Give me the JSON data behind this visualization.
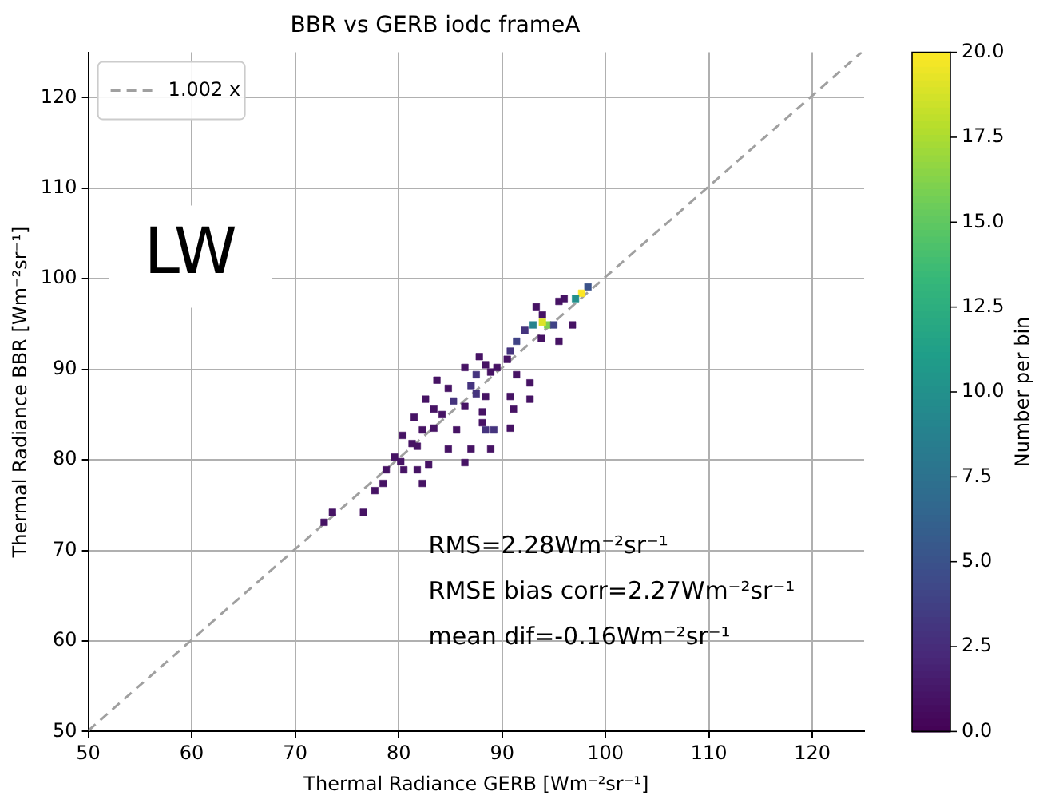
{
  "chart_data": {
    "type": "scatter",
    "title": "BBR vs GERB iodc frameA",
    "xlabel": "Thermal Radiance GERB [Wm⁻²sr⁻¹]",
    "ylabel": "Thermal Radiance BBR [Wm⁻²sr⁻¹]",
    "clabel": "Number per bin",
    "xlim": [
      50,
      125
    ],
    "ylim": [
      50,
      125
    ],
    "xticks": [
      50,
      60,
      70,
      80,
      90,
      100,
      110,
      120
    ],
    "yticks": [
      50,
      60,
      70,
      80,
      90,
      100,
      110,
      120
    ],
    "clim": [
      0,
      20
    ],
    "cticks": [
      {
        "value": 0,
        "label": "0.0"
      },
      {
        "value": 2.5,
        "label": "2.5"
      },
      {
        "value": 5,
        "label": "5.0"
      },
      {
        "value": 7.5,
        "label": "7.5"
      },
      {
        "value": 10,
        "label": "10.0"
      },
      {
        "value": 12.5,
        "label": "12.5"
      },
      {
        "value": 15,
        "label": "15.0"
      },
      {
        "value": 17.5,
        "label": "17.5"
      },
      {
        "value": 20,
        "label": "20.0"
      }
    ],
    "grid": true,
    "legend": "top left",
    "marker": "square",
    "annotations": [
      "LW",
      "RMS=2.28Wm⁻²sr⁻¹",
      "RMSE bias corr=2.27Wm⁻²sr⁻¹",
      "mean dif=-0.16Wm⁻²sr⁻¹"
    ],
    "series": [
      {
        "type": "scatter",
        "x": [
          98.3,
          97.7,
          97.1,
          96,
          95.5,
          93.3,
          93.9,
          94.4,
          93.9,
          93,
          95,
          92.2,
          91.4,
          90.8,
          93.8,
          95.5,
          96.8,
          90.5,
          87.8,
          88.4,
          86.4,
          87.5,
          88.9,
          89.5,
          91.4,
          92.7,
          83.7,
          84.8,
          87,
          87.5,
          88.4,
          90.8,
          92.7,
          82.6,
          85.3,
          86.4,
          83.4,
          84.2,
          91.1,
          81.5,
          88.1,
          88.1,
          82.3,
          83.4,
          88.4,
          89.2,
          90.8,
          85.6,
          80.4,
          81.3,
          81.8,
          84.8,
          87,
          88.9,
          79.6,
          80.2,
          82.9,
          80.5,
          78.8,
          86.4,
          81.8,
          78.5,
          82.3,
          77.7,
          76.6,
          73.6,
          72.8
        ],
        "values": [
          99.1,
          98.4,
          97.8,
          97.8,
          97.5,
          96.9,
          96,
          94.9,
          95.2,
          94.9,
          94.9,
          94.3,
          93.1,
          92,
          93.4,
          93.1,
          94.9,
          91.1,
          91.4,
          90.5,
          90.2,
          89.4,
          89.7,
          90.2,
          89.4,
          88.5,
          88.8,
          87.9,
          88.2,
          87.3,
          87,
          87,
          86.7,
          86.7,
          86.5,
          85.9,
          85.6,
          85,
          85.6,
          84.7,
          85.3,
          84.1,
          83.3,
          83.5,
          83.3,
          83.3,
          83.5,
          83.3,
          82.7,
          81.8,
          81.5,
          81.2,
          81.2,
          81.2,
          80.3,
          79.8,
          79.5,
          78.9,
          78.9,
          79.7,
          78.9,
          77.4,
          77.4,
          76.6,
          74.2,
          74.2,
          73.1
        ],
        "cvalues": [
          5,
          20,
          10,
          1,
          1,
          1,
          1,
          16,
          19,
          9,
          4,
          3,
          4,
          3,
          1,
          1,
          1,
          1,
          1,
          1,
          1,
          3,
          1,
          1,
          1,
          1,
          1,
          1,
          3,
          3,
          1,
          1,
          1,
          1,
          3,
          1,
          1,
          1,
          1,
          1,
          1,
          1,
          1,
          1,
          3,
          3,
          1,
          1,
          1,
          1,
          1,
          1,
          1,
          1,
          1,
          1,
          1,
          1,
          1,
          1,
          1,
          1,
          1,
          1,
          1,
          1,
          1
        ],
        "colors": [
          "#3b528a",
          "#fde725",
          "#23908c",
          "#461364",
          "#461364",
          "#461364",
          "#461364",
          "#7bd050",
          "#dce328",
          "#26838e",
          "#404386",
          "#45347e",
          "#404386",
          "#45347e",
          "#461364",
          "#461364",
          "#461364",
          "#461364",
          "#461364",
          "#461364",
          "#461364",
          "#45347e",
          "#461364",
          "#461364",
          "#461364",
          "#461364",
          "#461364",
          "#461364",
          "#45347e",
          "#45347e",
          "#461364",
          "#461364",
          "#461364",
          "#461364",
          "#45347e",
          "#461364",
          "#461364",
          "#461364",
          "#461364",
          "#461364",
          "#461364",
          "#461364",
          "#461364",
          "#461364",
          "#45347e",
          "#45347e",
          "#461364",
          "#461364",
          "#461364",
          "#461364",
          "#461364",
          "#461364",
          "#461364",
          "#461364",
          "#461364",
          "#461364",
          "#461364",
          "#461364",
          "#461364",
          "#461364",
          "#461364",
          "#461364",
          "#461364",
          "#461364",
          "#461364",
          "#461364",
          "#461364"
        ]
      },
      {
        "type": "line",
        "name": "1.002 x",
        "color": "#a0a0a0",
        "line_style": "dashed",
        "marker": "none",
        "x": [
          50,
          124.75
        ],
        "values": [
          50.1,
          125
        ]
      }
    ]
  }
}
